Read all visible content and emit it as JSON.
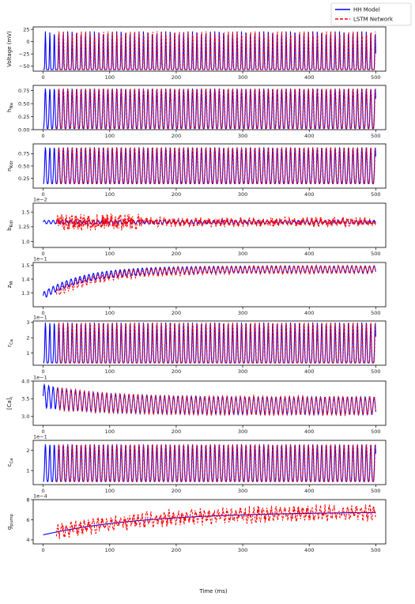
{
  "chart_data": [
    {
      "type": "line",
      "ylabel": "Voltage (mV)",
      "scale_label": "",
      "ylim": [
        -60,
        30
      ],
      "yticks": [
        {
          "v": 25,
          "t": "25"
        },
        {
          "v": 0,
          "t": "0"
        },
        {
          "v": -25,
          "t": "−25"
        },
        {
          "v": -50,
          "t": "−50"
        }
      ],
      "waveform": {
        "kind": "spikes",
        "lo": -57,
        "hi": 21,
        "sharp": 6,
        "lead": 2
      },
      "series": [
        {
          "name": "HH Model",
          "color": "#0000ff",
          "style": "solid"
        },
        {
          "name": "LSTM Network",
          "color": "#ff0000",
          "style": "dashed"
        }
      ]
    },
    {
      "type": "line",
      "ylabel": "h_Na",
      "scale_label": "",
      "ylim": [
        0,
        0.85
      ],
      "yticks": [
        {
          "v": 0.75,
          "t": "0.75"
        },
        {
          "v": 0.5,
          "t": "0.50"
        },
        {
          "v": 0.25,
          "t": "0.25"
        },
        {
          "v": 0,
          "t": "0.00"
        }
      ],
      "waveform": {
        "kind": "osc",
        "lo": 0.02,
        "hi": 0.79,
        "sharp": 2,
        "lead": 2
      },
      "series": [
        {
          "name": "HH Model",
          "color": "#0000ff",
          "style": "solid"
        },
        {
          "name": "LSTM Network",
          "color": "#ff0000",
          "style": "dashed"
        }
      ]
    },
    {
      "type": "line",
      "ylabel": "n_Kdr",
      "scale_label": "",
      "ylim": [
        0.05,
        0.95
      ],
      "yticks": [
        {
          "v": 0.75,
          "t": "0.75"
        },
        {
          "v": 0.5,
          "t": "0.50"
        },
        {
          "v": 0.25,
          "t": "0.25"
        }
      ],
      "waveform": {
        "kind": "osc",
        "lo": 0.14,
        "hi": 0.88,
        "sharp": 2,
        "lead": 2
      },
      "series": [
        {
          "name": "HH Model",
          "color": "#0000ff",
          "style": "solid"
        },
        {
          "name": "LSTM Network",
          "color": "#ff0000",
          "style": "dashed"
        }
      ]
    },
    {
      "type": "line",
      "ylabel": "b_Kdr",
      "scale_label": "1e−2",
      "ylim": [
        0.9,
        1.65
      ],
      "yticks": [
        {
          "v": 1.5,
          "t": "1.5"
        },
        {
          "v": 1.25,
          "t": "1.25"
        },
        {
          "v": 1.0,
          "t": "1.0"
        }
      ],
      "waveform": {
        "kind": "noisy",
        "base": 1.33,
        "amp": 0.03,
        "noise": 0.12
      },
      "series": [
        {
          "name": "HH Model",
          "color": "#0000ff",
          "style": "solid"
        },
        {
          "name": "LSTM Network",
          "color": "#ff0000",
          "style": "dashed"
        }
      ]
    },
    {
      "type": "line",
      "ylabel": "z_M",
      "scale_label": "1e−1",
      "ylim": [
        1.2,
        1.52
      ],
      "yticks": [
        {
          "v": 1.5,
          "t": "1.5"
        },
        {
          "v": 1.4,
          "t": "1.4"
        },
        {
          "v": 1.3,
          "t": "1.3"
        }
      ],
      "waveform": {
        "kind": "rise",
        "start": 1.28,
        "end": 1.47,
        "amp": 0.025,
        "tau": 60
      },
      "series": [
        {
          "name": "HH Model",
          "color": "#0000ff",
          "style": "solid"
        },
        {
          "name": "LSTM Network",
          "color": "#ff0000",
          "style": "dashed"
        }
      ]
    },
    {
      "type": "line",
      "ylabel": "r_Ca",
      "scale_label": "1e−1",
      "ylim": [
        0.2,
        3.1
      ],
      "yticks": [
        {
          "v": 3,
          "t": "3"
        },
        {
          "v": 2,
          "t": "2"
        },
        {
          "v": 1,
          "t": "1"
        }
      ],
      "waveform": {
        "kind": "osc",
        "lo": 0.35,
        "hi": 3.0,
        "sharp": 3,
        "lead": 2
      },
      "series": [
        {
          "name": "HH Model",
          "color": "#0000ff",
          "style": "solid"
        },
        {
          "name": "LSTM Network",
          "color": "#ff0000",
          "style": "dashed"
        }
      ]
    },
    {
      "type": "line",
      "ylabel": "[Ca]_i",
      "scale_label": "1e−1",
      "ylim": [
        2.75,
        4.0
      ],
      "yticks": [
        {
          "v": 4.0,
          "t": "4.0"
        },
        {
          "v": 3.5,
          "t": "3.5"
        },
        {
          "v": 3.0,
          "t": "3.0"
        }
      ],
      "waveform": {
        "kind": "decay",
        "lo": 3.05,
        "hi": 3.55,
        "lo0": 3.25,
        "hi0": 3.9,
        "tau": 80
      },
      "series": [
        {
          "name": "HH Model",
          "color": "#0000ff",
          "style": "solid"
        },
        {
          "name": "LSTM Network",
          "color": "#ff0000",
          "style": "dashed"
        }
      ]
    },
    {
      "type": "line",
      "ylabel": "c_Ca",
      "scale_label": "1e−1",
      "ylim": [
        0.3,
        2.5
      ],
      "yticks": [
        {
          "v": 2,
          "t": "2"
        },
        {
          "v": 1,
          "t": "1"
        }
      ],
      "waveform": {
        "kind": "osc",
        "lo": 0.45,
        "hi": 2.3,
        "sharp": 2,
        "lead": 2
      },
      "series": [
        {
          "name": "HH Model",
          "color": "#0000ff",
          "style": "solid"
        },
        {
          "name": "LSTM Network",
          "color": "#ff0000",
          "style": "dashed"
        }
      ]
    },
    {
      "type": "line",
      "ylabel": "g_pump",
      "scale_label": "1e−4",
      "ylim": [
        3.6,
        8.0
      ],
      "yticks": [
        {
          "v": 8,
          "t": "8"
        },
        {
          "v": 6,
          "t": "6"
        },
        {
          "v": 4,
          "t": "4"
        }
      ],
      "waveform": {
        "kind": "trend",
        "start": 4.5,
        "end": 6.8,
        "noise": 0.9,
        "tau": 150
      },
      "series": [
        {
          "name": "HH Model",
          "color": "#0000ff",
          "style": "solid"
        },
        {
          "name": "LSTM Network",
          "color": "#ff0000",
          "style": "dashed"
        }
      ]
    }
  ],
  "x": {
    "label": "Time (ms)",
    "xlim": [
      -15,
      515
    ],
    "ticks": [
      {
        "v": 0,
        "t": "0"
      },
      {
        "v": 100,
        "t": "100"
      },
      {
        "v": 200,
        "t": "200"
      },
      {
        "v": 300,
        "t": "300"
      },
      {
        "v": 400,
        "t": "400"
      },
      {
        "v": 500,
        "t": "500"
      }
    ],
    "period_ms": 6.7
  },
  "legend": {
    "position": "top-right",
    "entries": [
      {
        "name": "HH Model",
        "color": "#0000ff",
        "style": "solid"
      },
      {
        "name": "LSTM Network",
        "color": "#ff0000",
        "style": "dashed"
      }
    ]
  },
  "colors": {
    "hh": "#0000ff",
    "lstm": "#ff0000"
  }
}
